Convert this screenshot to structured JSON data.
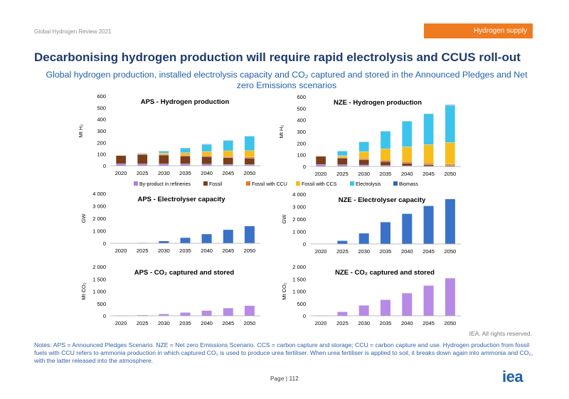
{
  "header": {
    "report": "Global Hydrogen Review 2021",
    "section": "Hydrogen supply"
  },
  "title": "Decarbonising hydrogen production will require rapid electrolysis and CCUS roll-out",
  "subtitle": "Global hydrogen production, installed electrolysis capacity and CO₂ captured and stored in the Announced Pledges and Net zero Emissions scenarios",
  "colors": {
    "byproduct": "#a982d9",
    "fossil": "#7b3d1c",
    "ccu": "#e0792c",
    "ccs": "#f6bd1b",
    "electrolysis": "#3cc4ec",
    "biomass": "#2f6aa5",
    "capacity": "#3a72c8",
    "co2": "#b68ae6"
  },
  "legend": [
    {
      "label": "By-product in refineries",
      "color_key": "byproduct"
    },
    {
      "label": "Fossil",
      "color_key": "fossil"
    },
    {
      "label": "Fossil with CCU",
      "color_key": "ccu"
    },
    {
      "label": "Fossil with CCS",
      "color_key": "ccs"
    },
    {
      "label": "Electrolysis",
      "color_key": "electrolysis"
    },
    {
      "label": "Biomass",
      "color_key": "biomass"
    }
  ],
  "chart_data": [
    {
      "id": "aps-production",
      "type": "bar",
      "stacked": true,
      "title": "APS - Hydrogen production",
      "ylabel": "Mt H₂",
      "ylim": [
        0,
        600
      ],
      "yticks": [
        "0",
        "100",
        "200",
        "300",
        "400",
        "500",
        "600"
      ],
      "categories": [
        "2020",
        "2025",
        "2030",
        "2035",
        "2040",
        "2045",
        "2050"
      ],
      "series": [
        {
          "name": "By-product in refineries",
          "color_key": "byproduct",
          "values": [
            17,
            17,
            16,
            15,
            14,
            12,
            10
          ]
        },
        {
          "name": "Fossil",
          "color_key": "fossil",
          "values": [
            70,
            80,
            76,
            68,
            64,
            58,
            54
          ]
        },
        {
          "name": "Fossil with CCU",
          "color_key": "ccu",
          "values": [
            3,
            5,
            6,
            7,
            8,
            9,
            10
          ]
        },
        {
          "name": "Fossil with CCS",
          "color_key": "ccs",
          "values": [
            1,
            3,
            11,
            22,
            36,
            50,
            56
          ]
        },
        {
          "name": "Electrolysis",
          "color_key": "electrolysis",
          "values": [
            0,
            2,
            16,
            40,
            62,
            88,
            123
          ]
        },
        {
          "name": "Biomass",
          "color_key": "biomass",
          "values": [
            0,
            0,
            1,
            1,
            2,
            2,
            3
          ]
        }
      ]
    },
    {
      "id": "nze-production",
      "type": "bar",
      "stacked": true,
      "title": "NZE - Hydrogen production",
      "ylabel": "Mt H₂",
      "ylim": [
        0,
        600
      ],
      "yticks": [
        "0",
        "100",
        "200",
        "300",
        "400",
        "500",
        "600"
      ],
      "categories": [
        "2020",
        "2025",
        "2030",
        "2035",
        "2040",
        "2045",
        "2050"
      ],
      "series": [
        {
          "name": "By-product in refineries",
          "color_key": "byproduct",
          "values": [
            17,
            15,
            12,
            8,
            5,
            3,
            2
          ]
        },
        {
          "name": "Fossil",
          "color_key": "fossil",
          "values": [
            70,
            58,
            46,
            34,
            22,
            12,
            6
          ]
        },
        {
          "name": "Fossil with CCU",
          "color_key": "ccu",
          "values": [
            3,
            6,
            10,
            12,
            14,
            14,
            12
          ]
        },
        {
          "name": "Fossil with CCS",
          "color_key": "ccs",
          "values": [
            1,
            13,
            60,
            98,
            127,
            158,
            186
          ]
        },
        {
          "name": "Electrolysis",
          "color_key": "electrolysis",
          "values": [
            0,
            40,
            84,
            150,
            220,
            264,
            320
          ]
        },
        {
          "name": "Biomass",
          "color_key": "biomass",
          "values": [
            0,
            0,
            1,
            2,
            3,
            3,
            4
          ]
        }
      ]
    },
    {
      "id": "aps-electrolyser",
      "type": "bar",
      "title": "APS - Electrolyser capacity",
      "ylabel": "GW",
      "ylim": [
        0,
        4000
      ],
      "yticks": [
        "0",
        "1 000",
        "2 000",
        "3 000",
        "4 000"
      ],
      "categories": [
        "2020",
        "2025",
        "2030",
        "2035",
        "2040",
        "2045",
        "2050"
      ],
      "series": [
        {
          "name": "Electrolyser capacity",
          "color_key": "capacity",
          "values": [
            0,
            25,
            170,
            440,
            730,
            1080,
            1370
          ]
        }
      ]
    },
    {
      "id": "nze-electrolyser",
      "type": "bar",
      "title": "NZE - Electrolyser capacity",
      "ylabel": "GW",
      "ylim": [
        0,
        4000
      ],
      "yticks": [
        "0",
        "1 000",
        "2 000",
        "3 000",
        "4 000"
      ],
      "categories": [
        "2020",
        "2025",
        "2030",
        "2035",
        "2040",
        "2045",
        "2050"
      ],
      "series": [
        {
          "name": "Electrolyser capacity",
          "color_key": "capacity",
          "values": [
            0,
            250,
            850,
            1750,
            2420,
            3050,
            3600
          ]
        }
      ]
    },
    {
      "id": "aps-co2",
      "type": "bar",
      "title": "APS - CO₂ captured and stored",
      "ylabel": "Mt CO₂",
      "ylim": [
        0,
        2000
      ],
      "yticks": [
        "0",
        "500",
        "1 000",
        "1 500",
        "2 000"
      ],
      "categories": [
        "2020",
        "2025",
        "2030",
        "2035",
        "2040",
        "2045",
        "2050"
      ],
      "series": [
        {
          "name": "CO₂ captured and stored",
          "color_key": "co2",
          "values": [
            15,
            25,
            70,
            130,
            210,
            310,
            410
          ]
        }
      ]
    },
    {
      "id": "nze-co2",
      "type": "bar",
      "title": "NZE - CO₂ captured and stored",
      "ylabel": "Mt CO₂",
      "ylim": [
        0,
        2000
      ],
      "yticks": [
        "0",
        "500",
        "1 000",
        "1 500",
        "2 000"
      ],
      "categories": [
        "2020",
        "2025",
        "2030",
        "2035",
        "2040",
        "2045",
        "2050"
      ],
      "series": [
        {
          "name": "CO₂ captured and stored",
          "color_key": "co2",
          "values": [
            15,
            160,
            420,
            650,
            920,
            1230,
            1530
          ]
        }
      ]
    }
  ],
  "footer": {
    "rights": "IEA. All rights reserved.",
    "notes": "Notes: APS = Announced Pledges Scenario. NZE = Net zero Emissions Scenario. CCS = carbon capture and storage; CCU = carbon capture and use. Hydrogen production from fossil fuels with CCU refers to ammonia production in which captured CO₂ is used to produce urea fertiliser. When urea fertiliser is applied to soil, it breaks down again into ammonia and CO₂, with the latter released into the atmosphere.",
    "page": "Page | 112",
    "logo": "iea"
  }
}
